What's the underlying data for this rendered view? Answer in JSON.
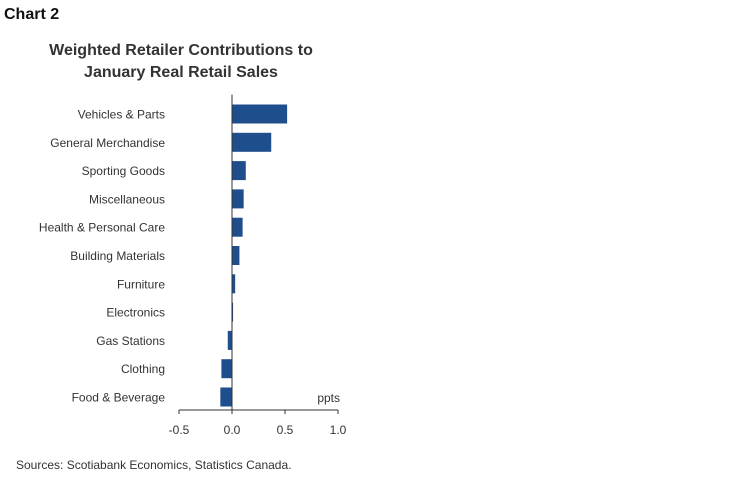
{
  "chart_label": "Chart 2",
  "source": "Sources: Scotiabank Economics, Statistics Canada.",
  "chart_data": {
    "type": "bar",
    "orientation": "horizontal",
    "title_lines": [
      "Weighted Retailer Contributions to",
      "January Real Retail Sales"
    ],
    "unit_label": "ppts",
    "categories": [
      "Vehicles & Parts",
      "General Merchandise",
      "Sporting Goods",
      "Miscellaneous",
      "Health & Personal Care",
      "Building Materials",
      "Furniture",
      "Electronics",
      "Gas Stations",
      "Clothing",
      "Food & Beverage"
    ],
    "values": [
      0.52,
      0.37,
      0.13,
      0.11,
      0.1,
      0.07,
      0.03,
      0.01,
      -0.04,
      -0.1,
      -0.11
    ],
    "xlim": [
      -0.5,
      1.0
    ],
    "xticks": [
      -0.5,
      0.0,
      0.5,
      1.0
    ],
    "xtick_labels": [
      "-0.5",
      "0.0",
      "0.5",
      "1.0"
    ],
    "bar_color": "#1f4e8c",
    "grid": false
  }
}
